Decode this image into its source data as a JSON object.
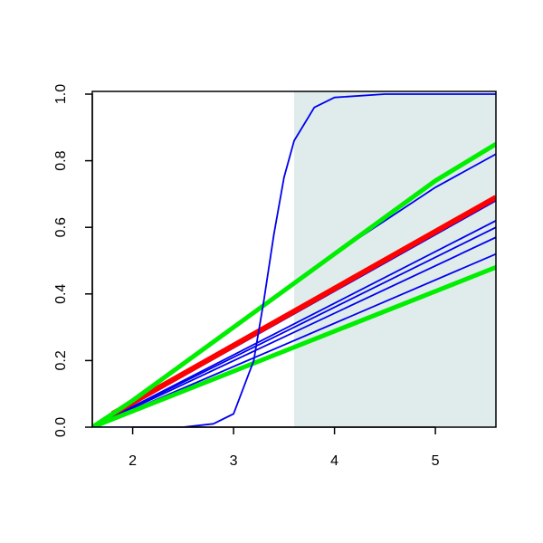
{
  "chart_data": {
    "type": "line",
    "xlim": [
      1.6,
      5.6
    ],
    "ylim": [
      0,
      1
    ],
    "xticks": [
      2,
      3,
      4,
      5
    ],
    "yticks": [
      {
        "value": 0,
        "label": "0.0"
      },
      {
        "value": 0.2,
        "label": "0.2"
      },
      {
        "value": 0.4,
        "label": "0.4"
      },
      {
        "value": 0.6,
        "label": "0.6"
      },
      {
        "value": 0.8,
        "label": "0.8"
      },
      {
        "value": 1,
        "label": "1.0"
      }
    ],
    "highlight": {
      "x": [
        3.6,
        5.6
      ],
      "color": "#e0ecec"
    },
    "series": [
      {
        "color": "#0000ee",
        "width": 1.8,
        "x": [
          1.6,
          5.6
        ],
        "values": [
          0,
          0.52
        ]
      },
      {
        "color": "#0000ee",
        "width": 1.8,
        "x": [
          1.6,
          5.6
        ],
        "values": [
          0,
          0.57
        ]
      },
      {
        "color": "#0000ee",
        "width": 1.8,
        "x": [
          1.6,
          5.6
        ],
        "values": [
          0,
          0.6
        ]
      },
      {
        "color": "#0000ee",
        "width": 1.8,
        "x": [
          1.6,
          5.6
        ],
        "values": [
          0,
          0.62
        ]
      },
      {
        "color": "#0000ee",
        "width": 1.8,
        "x": [
          1.6,
          5.6
        ],
        "values": [
          0,
          0.68
        ]
      },
      {
        "color": "#0000ee",
        "width": 1.8,
        "x": [
          1.6,
          2,
          2.5,
          3,
          3.5,
          4,
          4.5,
          5,
          5.6
        ],
        "values": [
          0,
          0.08,
          0.19,
          0.3,
          0.41,
          0.52,
          0.62,
          0.72,
          0.82
        ]
      },
      {
        "color": "#ff0000",
        "width": 6,
        "x": [
          1.8,
          5.6
        ],
        "values": [
          0.04,
          0.69
        ]
      },
      {
        "color": "#00ee00",
        "width": 5,
        "x": [
          1.6,
          5.6
        ],
        "values": [
          0,
          0.48
        ]
      },
      {
        "color": "#00ee00",
        "width": 5,
        "x": [
          1.6,
          2,
          2.5,
          3,
          3.5,
          4,
          4.5,
          5,
          5.6
        ],
        "values": [
          0,
          0.08,
          0.19,
          0.3,
          0.41,
          0.52,
          0.63,
          0.74,
          0.85
        ]
      },
      {
        "color": "#0000ee",
        "width": 1.8,
        "x": [
          1.6,
          2.5,
          2.8,
          3,
          3.2,
          3.3,
          3.4,
          3.5,
          3.6,
          3.8,
          4,
          4.5,
          5.6
        ],
        "values": [
          0,
          0,
          0.01,
          0.04,
          0.2,
          0.38,
          0.58,
          0.75,
          0.86,
          0.96,
          0.99,
          1,
          1
        ]
      }
    ]
  }
}
